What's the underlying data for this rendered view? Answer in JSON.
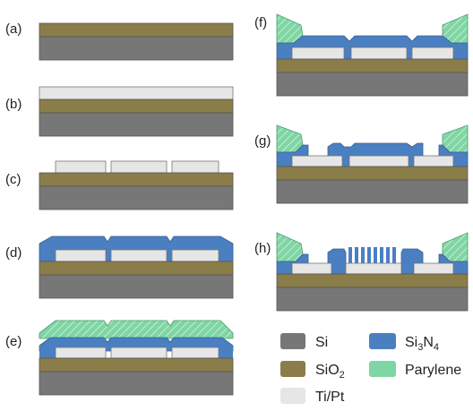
{
  "colors": {
    "si": "#777777",
    "sio2": "#8b7d49",
    "tipt": "#e6e6e6",
    "si3n4": "#4a7fc1",
    "parylene": "#7fd6a4",
    "stroke": "#555555"
  },
  "panels": {
    "a": "(a)",
    "b": "(b)",
    "c": "(c)",
    "d": "(d)",
    "e": "(e)",
    "f": "(f)",
    "g": "(g)",
    "h": "(h)"
  },
  "legend": {
    "si": "Si",
    "sio2_main": "SiO",
    "sio2_sub": "2",
    "tipt": "Ti/Pt",
    "si3n4_a": "Si",
    "si3n4_sub1": "3",
    "si3n4_b": "N",
    "si3n4_sub2": "4",
    "parylene": "Parylene"
  }
}
